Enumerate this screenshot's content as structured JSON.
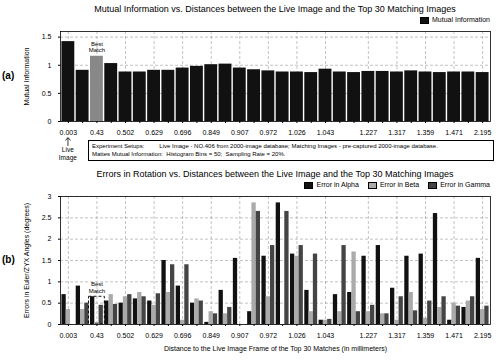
{
  "chart_data": [
    {
      "type": "bar",
      "title": "Mutual Information vs. Distances between the Live Image and the Top 30 Matching Images",
      "ylabel": "Mutual Information",
      "categories": [
        "0.003",
        null,
        "0.43",
        null,
        "0.502",
        null,
        "0.629",
        null,
        "0.696",
        null,
        "0.849",
        null,
        "0.907",
        null,
        "0.972",
        null,
        "1.026",
        null,
        "1.043",
        null,
        null,
        "1.227",
        null,
        "1.317",
        null,
        "1.359",
        null,
        "1.471",
        null,
        "2.195"
      ],
      "series": [
        {
          "name": "Mutual Information",
          "color": "#111111",
          "values": [
            1.42,
            0.91,
            1.16,
            1.03,
            0.88,
            0.88,
            0.91,
            0.91,
            0.95,
            0.98,
            1.01,
            1.02,
            0.95,
            0.92,
            0.9,
            0.88,
            0.88,
            0.87,
            0.93,
            0.88,
            0.87,
            0.89,
            0.89,
            0.88,
            0.9,
            0.88,
            0.87,
            0.88,
            0.88,
            0.87
          ]
        }
      ],
      "colors": [
        "#111111",
        "#111111",
        "#888888",
        "#111111",
        "#111111",
        "#111111",
        "#111111",
        "#111111",
        "#111111",
        "#111111",
        "#111111",
        "#111111",
        "#111111",
        "#111111",
        "#111111",
        "#111111",
        "#111111",
        "#111111",
        "#111111",
        "#111111",
        "#111111",
        "#111111",
        "#111111",
        "#111111",
        "#111111",
        "#111111",
        "#111111",
        "#111111",
        "#111111",
        "#111111"
      ],
      "ylim": [
        0,
        1.6
      ],
      "yticks": [
        0,
        0.5,
        1,
        1.5
      ],
      "grid": true,
      "annotations": [
        {
          "text": "(a)"
        },
        {
          "text": "Best\nMatch",
          "category": "0.43"
        },
        {
          "text": "Live\nImage",
          "category": "0.003"
        },
        {
          "text": "Experiment Setups:         Live Image - NO.406 from 2000-image database; Matching Images - pre-captured 2000-image database.\nMattes Mutual Information:  Histogram Bins = 50;  Sampling Rate = 20%."
        }
      ]
    },
    {
      "type": "bar",
      "title": "Errors in Rotation vs. Distances between the Live Image and the Top 30 Matching Images",
      "xlabel": "Distance to the Live Image Frame of the Top 30 Matches (in millimeters)",
      "ylabel": "Errors in Euler/ZYX Angles (degrees)",
      "categories": [
        "0.003",
        null,
        "0.43",
        null,
        "0.502",
        null,
        "0.629",
        null,
        "0.696",
        null,
        "0.849",
        null,
        "0.907",
        null,
        "0.972",
        null,
        "1.026",
        null,
        "1.043",
        null,
        null,
        "1.227",
        null,
        "1.317",
        null,
        "1.359",
        null,
        "1.471",
        null,
        "2.195"
      ],
      "series": [
        {
          "name": "Error in Alpha",
          "color": "#111111",
          "values": [
            0.7,
            0.9,
            0.65,
            0.55,
            0.5,
            0.6,
            0.55,
            1.5,
            0.9,
            0.5,
            0.05,
            0.8,
            1.55,
            0.3,
            1.6,
            2.85,
            1.65,
            0.8,
            0.1,
            0.7,
            0.75,
            1.6,
            1.85,
            0.85,
            1.6,
            1.65,
            2.6,
            0.1,
            0.4,
            1.55
          ]
        },
        {
          "name": "Error in Beta",
          "color": "#aaaaaa",
          "values": [
            0.35,
            0.35,
            0.05,
            0.7,
            0.65,
            0.75,
            0.45,
            0.75,
            0.1,
            0.6,
            0.3,
            0.25,
            0.0,
            2.85,
            0.65,
            0.0,
            1.6,
            0.3,
            0.1,
            0.3,
            1.7,
            0.3,
            0.25,
            0.1,
            0.75,
            0.15,
            0.4,
            0.5,
            0.55,
            0.35
          ]
        },
        {
          "name": "Error in Gamma",
          "color": "#444444",
          "values": [
            0.0,
            0.5,
            0.45,
            0.47,
            0.7,
            0.65,
            0.72,
            1.4,
            1.4,
            0.55,
            0.25,
            0.4,
            0.0,
            2.65,
            1.85,
            2.65,
            1.85,
            1.65,
            0.12,
            1.85,
            0.3,
            0.45,
            0.25,
            0.65,
            0.32,
            0.55,
            0.65,
            0.43,
            0.65,
            0.43
          ]
        }
      ],
      "ylim": [
        0,
        3
      ],
      "yticks": [
        0,
        0.5,
        1,
        1.5,
        2,
        2.5,
        3
      ],
      "grid": true,
      "annotations": [
        {
          "text": "(b)"
        },
        {
          "text": "Best\nMatch",
          "category": "0.43"
        }
      ]
    }
  ]
}
